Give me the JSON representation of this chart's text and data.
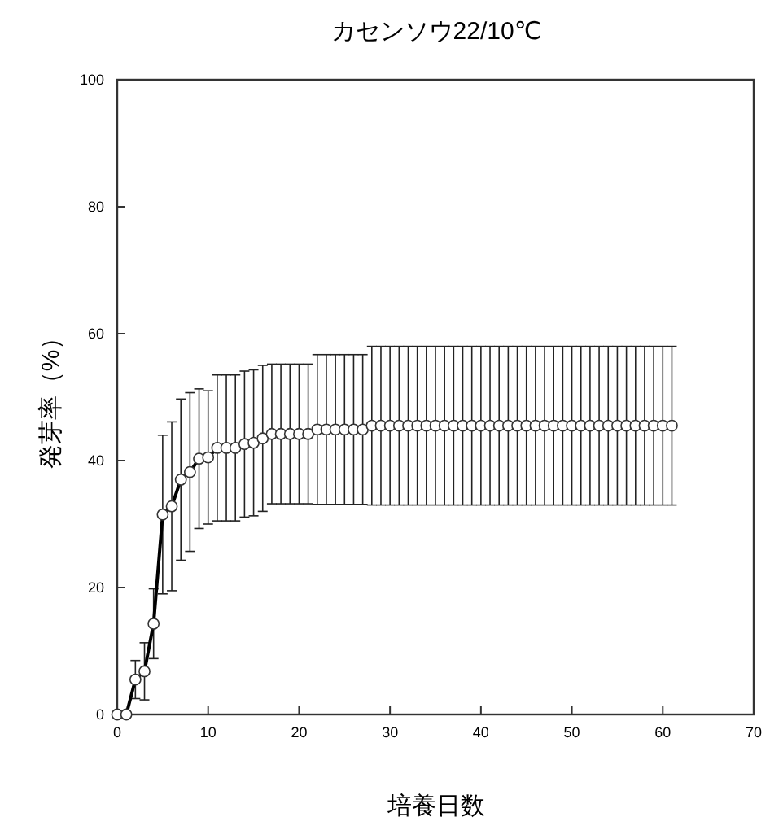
{
  "chart_data": {
    "type": "line",
    "title": "カセンソウ22/10℃",
    "xlabel": "培養日数",
    "ylabel": "発芽率（%）",
    "x": [
      0,
      1,
      2,
      3,
      4,
      5,
      6,
      7,
      8,
      9,
      10,
      11,
      12,
      13,
      14,
      15,
      16,
      17,
      18,
      19,
      20,
      21,
      22,
      23,
      24,
      25,
      26,
      27,
      28,
      29,
      30,
      31,
      32,
      33,
      34,
      35,
      36,
      37,
      38,
      39,
      40,
      41,
      42,
      43,
      44,
      45,
      46,
      47,
      48,
      49,
      50,
      51,
      52,
      53,
      54,
      55,
      56,
      57,
      58,
      59,
      60,
      61
    ],
    "series": [
      {
        "color": "#000000",
        "values": [
          0,
          0,
          5.5,
          6.8,
          14.3,
          31.5,
          32.8,
          37,
          38.2,
          40.3,
          40.5,
          42,
          42,
          42,
          42.6,
          42.8,
          43.5,
          44.2,
          44.2,
          44.2,
          44.2,
          44.2,
          44.9,
          44.9,
          44.9,
          44.9,
          44.9,
          44.9,
          45.5,
          45.5,
          45.5,
          45.5,
          45.5,
          45.5,
          45.5,
          45.5,
          45.5,
          45.5,
          45.5,
          45.5,
          45.5,
          45.5,
          45.5,
          45.5,
          45.5,
          45.5,
          45.5,
          45.5,
          45.5,
          45.5,
          45.5,
          45.5,
          45.5,
          45.5,
          45.5,
          45.5,
          45.5,
          45.5,
          45.5,
          45.5,
          45.5,
          45.5
        ],
        "errors": [
          null,
          null,
          3,
          4.5,
          5.5,
          12.5,
          13.3,
          12.7,
          12.5,
          11,
          10.5,
          11.5,
          11.5,
          11.5,
          11.5,
          11.5,
          11.5,
          11,
          11,
          11,
          11,
          11,
          11.8,
          11.8,
          11.8,
          11.8,
          11.8,
          11.8,
          12.5,
          12.5,
          12.5,
          12.5,
          12.5,
          12.5,
          12.5,
          12.5,
          12.5,
          12.5,
          12.5,
          12.5,
          12.5,
          12.5,
          12.5,
          12.5,
          12.5,
          12.5,
          12.5,
          12.5,
          12.5,
          12.5,
          12.5,
          12.5,
          12.5,
          12.5,
          12.5,
          12.5,
          12.5,
          12.5,
          12.5,
          12.5,
          12.5,
          12.5
        ]
      }
    ],
    "xlim": [
      0,
      70
    ],
    "xticks": [
      0,
      10,
      20,
      30,
      40,
      50,
      60,
      70
    ],
    "ylim": [
      0,
      100
    ],
    "yticks": [
      0,
      20,
      40,
      60,
      80,
      100
    ],
    "grid": false,
    "marker": "circle",
    "line_style": "solid"
  }
}
